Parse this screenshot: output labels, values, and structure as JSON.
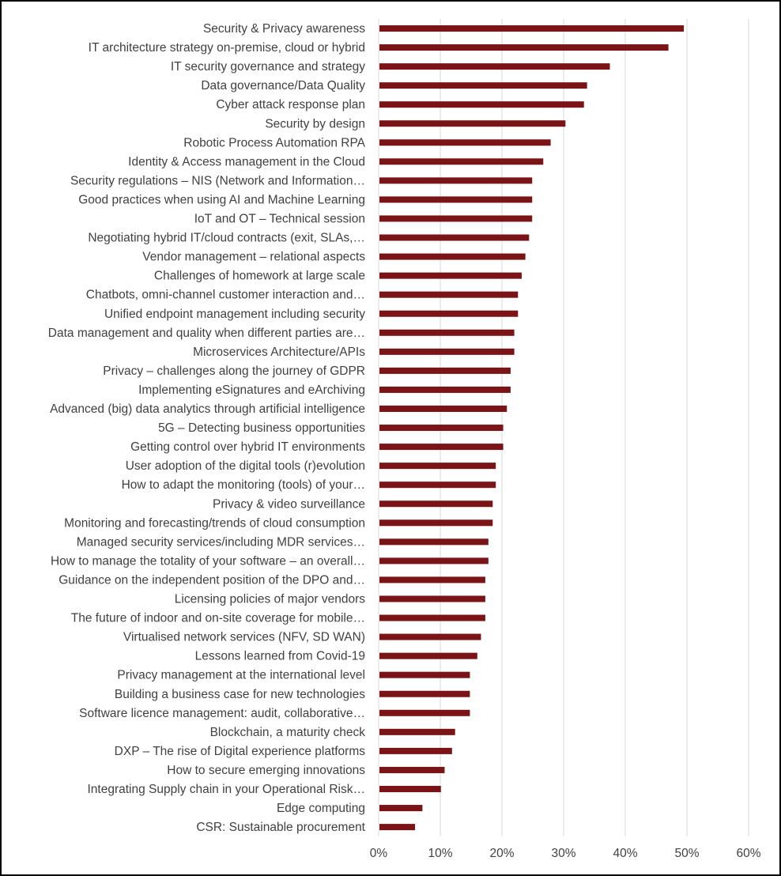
{
  "chart_data": {
    "type": "bar",
    "orientation": "horizontal",
    "categories": [
      "Security & Privacy awareness",
      "IT architecture strategy on-premise, cloud or hybrid",
      "IT security governance and strategy",
      "Data governance/Data Quality",
      "Cyber attack response plan",
      "Security by design",
      "Robotic Process Automation RPA",
      "Identity & Access management in the Cloud",
      "Security regulations – NIS (Network and Information…",
      "Good practices when using AI and Machine Learning",
      "IoT and OT – Technical session",
      "Negotiating hybrid IT/cloud contracts (exit, SLAs,…",
      "Vendor management – relational aspects",
      "Challenges of homework at large scale",
      "Chatbots, omni-channel customer interaction and…",
      "Unified endpoint management  including security",
      "Data management and quality when different parties are…",
      "Microservices Architecture/APIs",
      "Privacy – challenges along the journey of GDPR",
      "Implementing eSignatures and eArchiving",
      "Advanced (big) data analytics through artificial intelligence",
      "5G – Detecting business opportunities",
      "Getting control over hybrid IT environments",
      "User adoption of the digital tools (r)evolution",
      "How to adapt the monitoring (tools) of your…",
      "Privacy & video surveillance",
      "Monitoring and forecasting/trends of cloud consumption",
      "Managed security services/including MDR services…",
      "How to manage the totality of your software – an overall…",
      "Guidance on the independent position of the DPO and…",
      "Licensing policies of major vendors",
      "The future of indoor and on-site coverage for mobile…",
      "Virtualised network services (NFV, SD WAN)",
      "Lessons learned from Covid-19",
      "Privacy management at the international level",
      "Building a business case for new technologies",
      "Software licence management: audit, collaborative…",
      "Blockchain, a maturity check",
      "DXP – The rise of Digital experience platforms",
      "How to secure emerging innovations",
      "Integrating Supply chain in your Operational Risk…",
      "Edge computing",
      "CSR: Sustainable procurement"
    ],
    "values": [
      49.5,
      47.0,
      37.5,
      33.8,
      33.3,
      30.3,
      27.9,
      26.7,
      24.9,
      24.9,
      24.9,
      24.4,
      23.8,
      23.2,
      22.6,
      22.6,
      22.0,
      22.0,
      21.4,
      21.4,
      20.8,
      20.2,
      20.2,
      19.0,
      19.0,
      18.5,
      18.5,
      17.8,
      17.8,
      17.3,
      17.3,
      17.3,
      16.6,
      16.0,
      14.8,
      14.8,
      14.8,
      12.4,
      11.9,
      10.7,
      10.1,
      7.1,
      5.9
    ],
    "xlim": [
      0,
      60
    ],
    "x_ticks": [
      "0%",
      "10%",
      "20%",
      "30%",
      "40%",
      "50%",
      "60%"
    ],
    "grid": "vertical",
    "bar_color": "#7B1416",
    "grid_color": "#D9D9D9",
    "label_color": "#404040",
    "title": "",
    "xlabel": "",
    "ylabel": ""
  }
}
